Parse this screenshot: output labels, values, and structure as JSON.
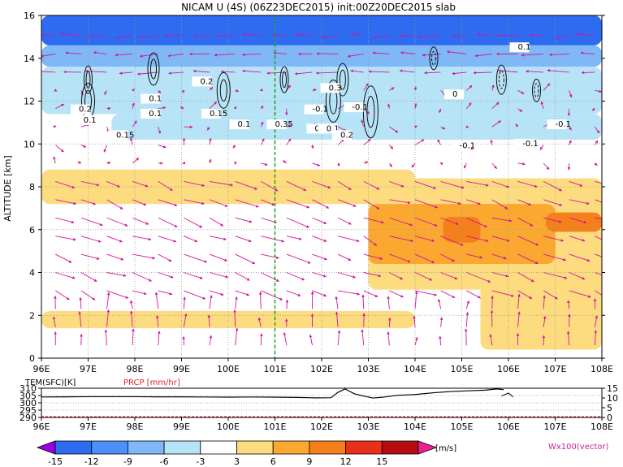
{
  "chart_data": [
    {
      "type": "heatmap",
      "title": "NICAM  U  (4S)  (06Z23DEC2015)  init:00Z20DEC2015  slab",
      "ylabel": "ALTITUDE  [km]",
      "x_ticks": [
        "96E",
        "97E",
        "98E",
        "99E",
        "100E",
        "101E",
        "102E",
        "103E",
        "104E",
        "105E",
        "106E",
        "107E",
        "108E"
      ],
      "y_ticks": [
        "0",
        "2",
        "4",
        "6",
        "8",
        "10",
        "12",
        "14",
        "16"
      ],
      "xlim": [
        96,
        108
      ],
      "ylim": [
        0,
        16
      ],
      "grid": true,
      "reference_line_lon": 101,
      "contour_labels": [
        "0.2",
        "0.1",
        "0.15",
        "0.1",
        "0.1",
        "0.2",
        "0.15",
        "0.1",
        "0.35",
        "0.1",
        "-0.1",
        "0.3",
        "0.1",
        "-0.1",
        "0.2",
        "0",
        "-0.1",
        "0.1",
        "-0.1",
        "-0.1"
      ],
      "fields": [
        {
          "lon_range": [
            96,
            108
          ],
          "alt_range": [
            14.6,
            16
          ],
          "value": -13
        },
        {
          "lon_range": [
            96,
            108
          ],
          "alt_range": [
            13.6,
            14.6
          ],
          "value": -8
        },
        {
          "lon_range": [
            96,
            108
          ],
          "alt_range": [
            11.4,
            13.6
          ],
          "value": -5
        },
        {
          "lon_range": [
            97.5,
            108
          ],
          "alt_range": [
            10.2,
            11.4
          ],
          "value": -4
        },
        {
          "lon_range": [
            96,
            104
          ],
          "alt_range": [
            7.2,
            8.8
          ],
          "value": 4
        },
        {
          "lon_range": [
            103,
            108
          ],
          "alt_range": [
            3.2,
            8.4
          ],
          "value": 5
        },
        {
          "lon_range": [
            103,
            107
          ],
          "alt_range": [
            4.4,
            7.2
          ],
          "value": 7
        },
        {
          "lon_range": [
            105.4,
            108
          ],
          "alt_range": [
            0.4,
            4.2
          ],
          "value": 6
        },
        {
          "lon_range": [
            104.6,
            105.4
          ],
          "alt_range": [
            5.4,
            6.6
          ],
          "value": 10
        },
        {
          "lon_range": [
            106.8,
            108
          ],
          "alt_range": [
            5.9,
            6.8
          ],
          "value": 10
        },
        {
          "lon_range": [
            96,
            104
          ],
          "alt_range": [
            1.4,
            2.2
          ],
          "value": 4
        }
      ]
    },
    {
      "type": "line",
      "ylabel_left": "TEM(SFC)[K]",
      "ylabel_right": "PRCP  [mm/hr]",
      "left_ticks": [
        "310",
        "305",
        "300",
        "295",
        "290"
      ],
      "right_ticks": [
        "15",
        "10",
        "5",
        "0"
      ],
      "x_ticks": [
        "96E",
        "97E",
        "98E",
        "99E",
        "100E",
        "101E",
        "102E",
        "103E",
        "104E",
        "105E",
        "106E",
        "107E",
        "108E"
      ],
      "series": [
        {
          "name": "TEM(SFC)",
          "x": [
            96.0,
            96.5,
            97.0,
            97.5,
            98.0,
            98.5,
            99.0,
            99.5,
            100.0,
            100.5,
            101.0,
            101.5,
            101.9,
            102.2,
            102.35,
            102.5,
            102.7,
            102.9,
            103.1,
            103.3,
            103.6,
            104.0,
            104.4,
            104.8,
            105.2,
            105.5,
            105.75,
            105.9
          ],
          "y": [
            304.0,
            304.1,
            304.2,
            304.2,
            304.2,
            304.1,
            304.1,
            304.0,
            303.9,
            304.0,
            303.9,
            303.7,
            303.4,
            303.5,
            307.2,
            309.5,
            306.2,
            304.6,
            303.3,
            303.8,
            305.1,
            305.7,
            306.9,
            307.8,
            308.3,
            308.7,
            309.5,
            309.0
          ]
        },
        {
          "name": "PRCP",
          "x": [
            105.85,
            106.0,
            106.1
          ],
          "y": [
            11.0,
            12.5,
            10.5
          ]
        }
      ]
    }
  ],
  "colorbar": {
    "ticks": [
      "-15",
      "-12",
      "-9",
      "-6",
      "-3",
      "3",
      "6",
      "9",
      "12",
      "15"
    ],
    "unit": "[m/s]",
    "colors": [
      "#9b00e0",
      "#2d6cf0",
      "#4b8ff7",
      "#7fb8f7",
      "#b7e3f7",
      "#ffffff",
      "#fddc80",
      "#fba830",
      "#f57f1a",
      "#e8301a",
      "#b30d12",
      "#ee1e9b"
    ]
  },
  "vector_label": "Wx100(vector)"
}
